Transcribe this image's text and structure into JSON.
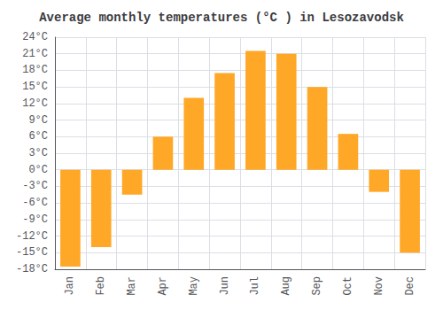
{
  "chart_data": {
    "type": "bar",
    "title": "Average monthly temperatures (°C ) in Lesozavodsk",
    "categories": [
      "Jan",
      "Feb",
      "Mar",
      "Apr",
      "May",
      "Jun",
      "Jul",
      "Aug",
      "Sep",
      "Oct",
      "Nov",
      "Dec"
    ],
    "values": [
      -17.5,
      -14.0,
      -4.5,
      6.0,
      13.0,
      17.5,
      21.5,
      21.0,
      15.0,
      6.5,
      -4.0,
      -15.0
    ],
    "color": "#FFA726",
    "ylim": [
      -18,
      24
    ],
    "yticks": [
      {
        "value": -18,
        "label": "-18°C"
      },
      {
        "value": -15,
        "label": "-15°C"
      },
      {
        "value": -12,
        "label": "-12°C"
      },
      {
        "value": -9,
        "label": "-9°C"
      },
      {
        "value": -6,
        "label": "-6°C"
      },
      {
        "value": -3,
        "label": "-3°C"
      },
      {
        "value": 0,
        "label": "0°C"
      },
      {
        "value": 3,
        "label": "3°C"
      },
      {
        "value": 6,
        "label": "6°C"
      },
      {
        "value": 9,
        "label": "9°C"
      },
      {
        "value": 12,
        "label": "12°C"
      },
      {
        "value": 15,
        "label": "15°C"
      },
      {
        "value": 18,
        "label": "18°C"
      },
      {
        "value": 21,
        "label": "21°C"
      },
      {
        "value": 24,
        "label": "24°C"
      }
    ],
    "grid": true
  }
}
